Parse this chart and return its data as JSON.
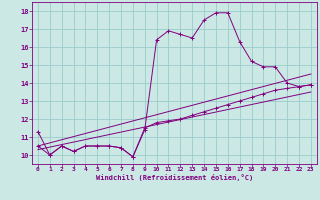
{
  "bg_color": "#cce8e4",
  "line_color": "#800080",
  "grid_color": "#99cccc",
  "xlim": [
    -0.5,
    23.5
  ],
  "ylim": [
    9.5,
    18.5
  ],
  "xticks": [
    0,
    1,
    2,
    3,
    4,
    5,
    6,
    7,
    8,
    9,
    10,
    11,
    12,
    13,
    14,
    15,
    16,
    17,
    18,
    19,
    20,
    21,
    22,
    23
  ],
  "yticks": [
    10,
    11,
    12,
    13,
    14,
    15,
    16,
    17,
    18
  ],
  "xlabel": "Windchill (Refroidissement éolien,°C)",
  "line1_x": [
    0,
    1,
    2,
    3,
    4,
    5,
    6,
    7,
    8,
    9,
    10,
    11,
    12,
    13,
    14,
    15,
    16,
    17,
    18,
    19,
    20,
    21,
    22,
    23
  ],
  "line1_y": [
    11.3,
    10.0,
    10.5,
    10.2,
    10.5,
    10.5,
    10.5,
    10.4,
    9.9,
    11.4,
    16.4,
    16.9,
    16.7,
    16.5,
    17.5,
    17.9,
    17.9,
    16.3,
    15.2,
    14.9,
    14.9,
    14.0,
    13.8,
    13.9
  ],
  "line2_x": [
    0,
    1,
    2,
    3,
    4,
    5,
    6,
    7,
    8,
    9,
    10,
    11,
    12,
    13,
    14,
    15,
    16,
    17,
    18,
    19,
    20,
    21,
    22,
    23
  ],
  "line2_y": [
    10.5,
    10.0,
    10.5,
    10.2,
    10.5,
    10.5,
    10.5,
    10.4,
    9.9,
    11.5,
    11.8,
    11.9,
    12.0,
    12.2,
    12.4,
    12.6,
    12.8,
    13.0,
    13.2,
    13.4,
    13.6,
    13.7,
    13.8,
    13.9
  ],
  "line3_x": [
    0,
    23
  ],
  "line3_y": [
    10.5,
    14.5
  ],
  "line4_x": [
    0,
    23
  ],
  "line4_y": [
    10.3,
    13.5
  ]
}
